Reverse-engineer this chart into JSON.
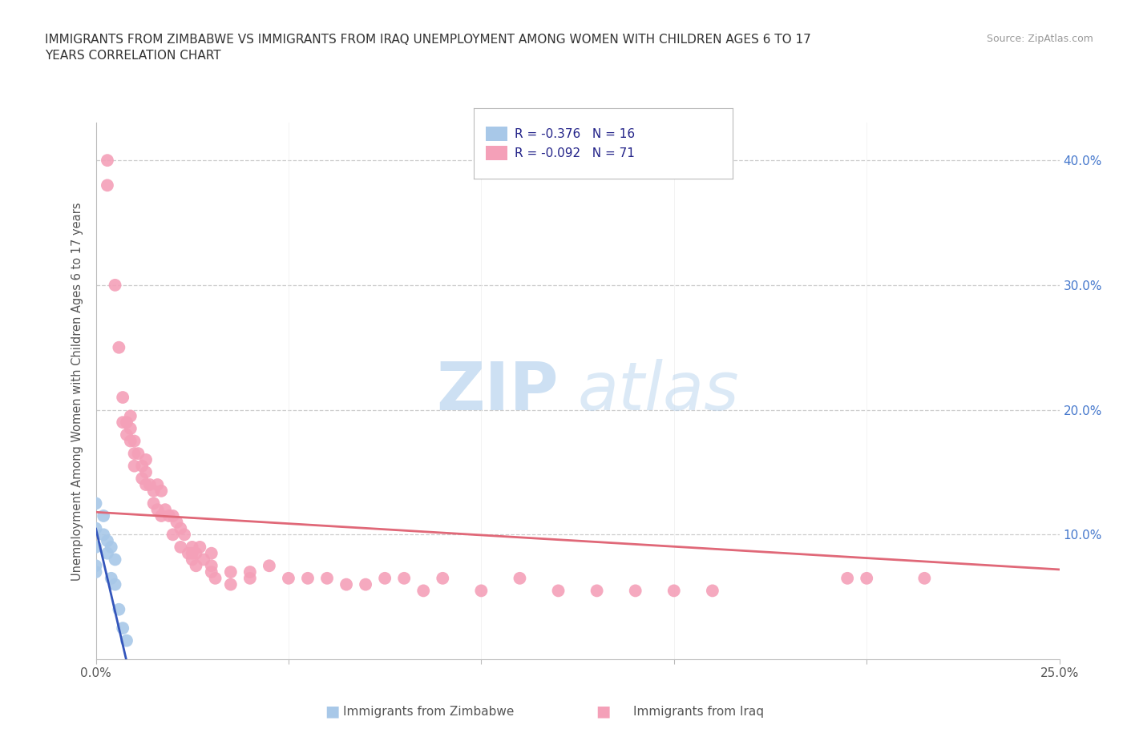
{
  "title": "IMMIGRANTS FROM ZIMBABWE VS IMMIGRANTS FROM IRAQ UNEMPLOYMENT AMONG WOMEN WITH CHILDREN AGES 6 TO 17\nYEARS CORRELATION CHART",
  "source": "Source: ZipAtlas.com",
  "ylabel": "Unemployment Among Women with Children Ages 6 to 17 years",
  "xlim": [
    0.0,
    0.25
  ],
  "ylim": [
    0.0,
    0.43
  ],
  "legend_r1": "-0.376",
  "legend_n1": "16",
  "legend_r2": "-0.092",
  "legend_n2": "71",
  "color_zimbabwe": "#a8c8e8",
  "color_iraq": "#f4a0b8",
  "color_line_zimbabwe": "#3355bb",
  "color_line_iraq": "#e06878",
  "watermark_zip": "ZIP",
  "watermark_atlas": "atlas",
  "zimbabwe_x": [
    0.0,
    0.0,
    0.0,
    0.0,
    0.0,
    0.002,
    0.002,
    0.003,
    0.003,
    0.004,
    0.004,
    0.005,
    0.005,
    0.006,
    0.007,
    0.008
  ],
  "zimbabwe_y": [
    0.125,
    0.105,
    0.09,
    0.075,
    0.07,
    0.115,
    0.1,
    0.095,
    0.085,
    0.09,
    0.065,
    0.08,
    0.06,
    0.04,
    0.025,
    0.015
  ],
  "iraq_x": [
    0.003,
    0.003,
    0.005,
    0.006,
    0.007,
    0.007,
    0.008,
    0.008,
    0.009,
    0.009,
    0.009,
    0.01,
    0.01,
    0.01,
    0.011,
    0.012,
    0.012,
    0.013,
    0.013,
    0.013,
    0.014,
    0.015,
    0.015,
    0.016,
    0.016,
    0.017,
    0.017,
    0.018,
    0.019,
    0.02,
    0.02,
    0.021,
    0.022,
    0.022,
    0.023,
    0.024,
    0.025,
    0.025,
    0.025,
    0.026,
    0.026,
    0.027,
    0.028,
    0.03,
    0.03,
    0.03,
    0.031,
    0.035,
    0.035,
    0.04,
    0.04,
    0.045,
    0.05,
    0.055,
    0.06,
    0.065,
    0.07,
    0.075,
    0.08,
    0.085,
    0.09,
    0.1,
    0.11,
    0.12,
    0.13,
    0.14,
    0.15,
    0.16,
    0.195,
    0.2,
    0.215
  ],
  "iraq_y": [
    0.4,
    0.38,
    0.3,
    0.25,
    0.21,
    0.19,
    0.19,
    0.18,
    0.195,
    0.185,
    0.175,
    0.175,
    0.165,
    0.155,
    0.165,
    0.155,
    0.145,
    0.16,
    0.15,
    0.14,
    0.14,
    0.135,
    0.125,
    0.14,
    0.12,
    0.135,
    0.115,
    0.12,
    0.115,
    0.115,
    0.1,
    0.11,
    0.105,
    0.09,
    0.1,
    0.085,
    0.09,
    0.085,
    0.08,
    0.085,
    0.075,
    0.09,
    0.08,
    0.075,
    0.07,
    0.085,
    0.065,
    0.07,
    0.06,
    0.065,
    0.07,
    0.075,
    0.065,
    0.065,
    0.065,
    0.06,
    0.06,
    0.065,
    0.065,
    0.055,
    0.065,
    0.055,
    0.065,
    0.055,
    0.055,
    0.055,
    0.055,
    0.055,
    0.065,
    0.065,
    0.065
  ]
}
